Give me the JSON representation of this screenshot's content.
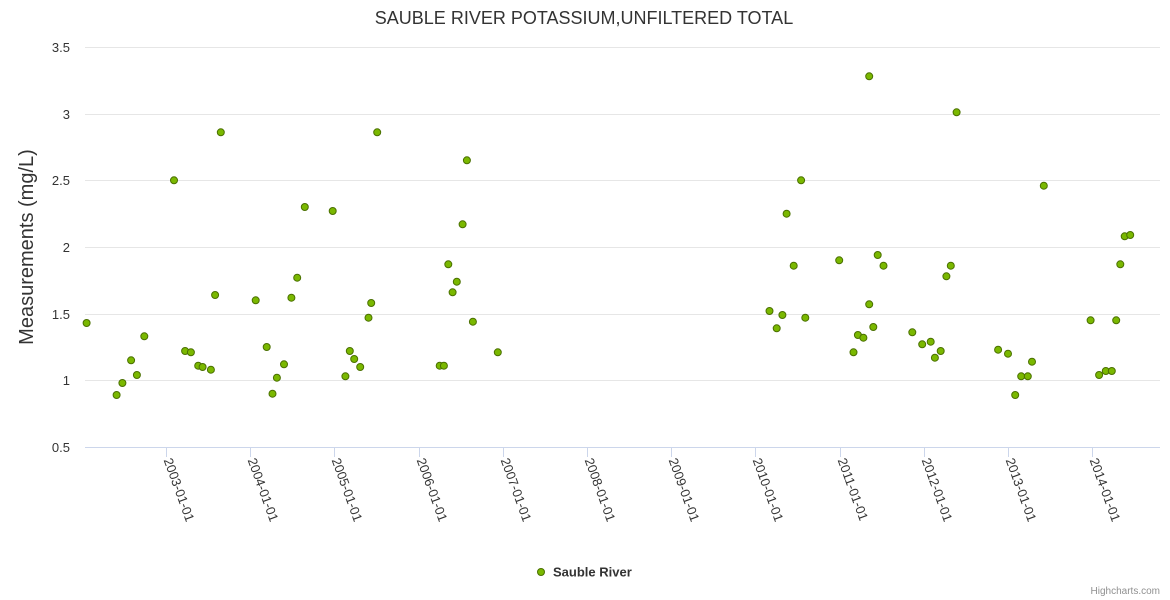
{
  "chart_data": {
    "type": "scatter",
    "title": "SAUBLE RIVER POTASSIUM,UNFILTERED TOTAL",
    "ylabel": "Measurements (mg/L)",
    "xlabel": "",
    "ylim": [
      0.5,
      3.5
    ],
    "yticks": [
      "0.5",
      "1",
      "1.5",
      "2",
      "2.5",
      "3",
      "3.5"
    ],
    "xlim": [
      "2002-01-16",
      "2014-10-21"
    ],
    "xticks": [
      "2003-01-01",
      "2004-01-01",
      "2005-01-01",
      "2006-01-01",
      "2007-01-01",
      "2008-01-01",
      "2009-01-01",
      "2010-01-01",
      "2011-01-01",
      "2012-01-01",
      "2013-01-01",
      "2014-01-01"
    ],
    "grid": true,
    "color": "#7ab800",
    "series": [
      {
        "name": "Sauble River",
        "points": [
          [
            "2002-01-23",
            1.43
          ],
          [
            "2002-06-02",
            0.89
          ],
          [
            "2002-06-27",
            0.98
          ],
          [
            "2002-08-04",
            1.15
          ],
          [
            "2002-08-29",
            1.04
          ],
          [
            "2002-09-30",
            1.33
          ],
          [
            "2003-02-06",
            2.5
          ],
          [
            "2003-03-26",
            1.22
          ],
          [
            "2003-04-20",
            1.21
          ],
          [
            "2003-05-22",
            1.11
          ],
          [
            "2003-06-10",
            1.1
          ],
          [
            "2003-07-16",
            1.08
          ],
          [
            "2003-08-03",
            1.64
          ],
          [
            "2003-08-28",
            2.86
          ],
          [
            "2004-01-26",
            1.6
          ],
          [
            "2004-03-14",
            1.25
          ],
          [
            "2004-04-08",
            0.9
          ],
          [
            "2004-04-27",
            1.02
          ],
          [
            "2004-05-28",
            1.12
          ],
          [
            "2004-06-29",
            1.62
          ],
          [
            "2004-07-24",
            1.77
          ],
          [
            "2004-08-26",
            2.3
          ],
          [
            "2004-12-25",
            2.27
          ],
          [
            "2005-02-18",
            1.03
          ],
          [
            "2005-03-09",
            1.22
          ],
          [
            "2005-03-28",
            1.16
          ],
          [
            "2005-04-23",
            1.1
          ],
          [
            "2005-05-29",
            1.47
          ],
          [
            "2005-06-10",
            1.58
          ],
          [
            "2005-07-06",
            2.86
          ],
          [
            "2006-04-03",
            1.11
          ],
          [
            "2006-04-21",
            1.11
          ],
          [
            "2006-05-10",
            1.87
          ],
          [
            "2006-05-29",
            1.66
          ],
          [
            "2006-06-16",
            1.74
          ],
          [
            "2006-07-11",
            2.17
          ],
          [
            "2006-07-30",
            2.65
          ],
          [
            "2006-08-25",
            1.44
          ],
          [
            "2006-12-11",
            1.21
          ],
          [
            "2010-03-03",
            1.52
          ],
          [
            "2010-04-03",
            1.39
          ],
          [
            "2010-04-28",
            1.49
          ],
          [
            "2010-05-16",
            2.25
          ],
          [
            "2010-06-16",
            1.86
          ],
          [
            "2010-07-18",
            2.5
          ],
          [
            "2010-08-05",
            1.47
          ],
          [
            "2010-12-30",
            1.9
          ],
          [
            "2011-03-02",
            1.21
          ],
          [
            "2011-03-21",
            1.34
          ],
          [
            "2011-04-14",
            1.32
          ],
          [
            "2011-05-09",
            1.57
          ],
          [
            "2011-05-09",
            3.28
          ],
          [
            "2011-05-27",
            1.4
          ],
          [
            "2011-06-15",
            1.94
          ],
          [
            "2011-07-10",
            1.86
          ],
          [
            "2011-11-12",
            1.36
          ],
          [
            "2011-12-25",
            1.27
          ],
          [
            "2012-01-31",
            1.29
          ],
          [
            "2012-02-18",
            1.17
          ],
          [
            "2012-03-14",
            1.22
          ],
          [
            "2012-04-08",
            1.78
          ],
          [
            "2012-04-27",
            1.86
          ],
          [
            "2012-05-22",
            3.01
          ],
          [
            "2012-11-18",
            1.23
          ],
          [
            "2012-12-31",
            1.2
          ],
          [
            "2013-01-31",
            0.89
          ],
          [
            "2013-02-26",
            1.03
          ],
          [
            "2013-03-27",
            1.03
          ],
          [
            "2013-04-14",
            1.14
          ],
          [
            "2013-06-04",
            2.46
          ],
          [
            "2013-12-24",
            1.45
          ],
          [
            "2014-01-30",
            1.04
          ],
          [
            "2014-02-28",
            1.07
          ],
          [
            "2014-03-26",
            1.07
          ],
          [
            "2014-04-14",
            1.45
          ],
          [
            "2014-05-02",
            1.87
          ],
          [
            "2014-05-21",
            2.08
          ],
          [
            "2014-06-14",
            2.09
          ]
        ]
      }
    ],
    "legend": {
      "position": "bottom-center",
      "items": [
        "Sauble River"
      ]
    },
    "credits": "Highcharts.com"
  }
}
